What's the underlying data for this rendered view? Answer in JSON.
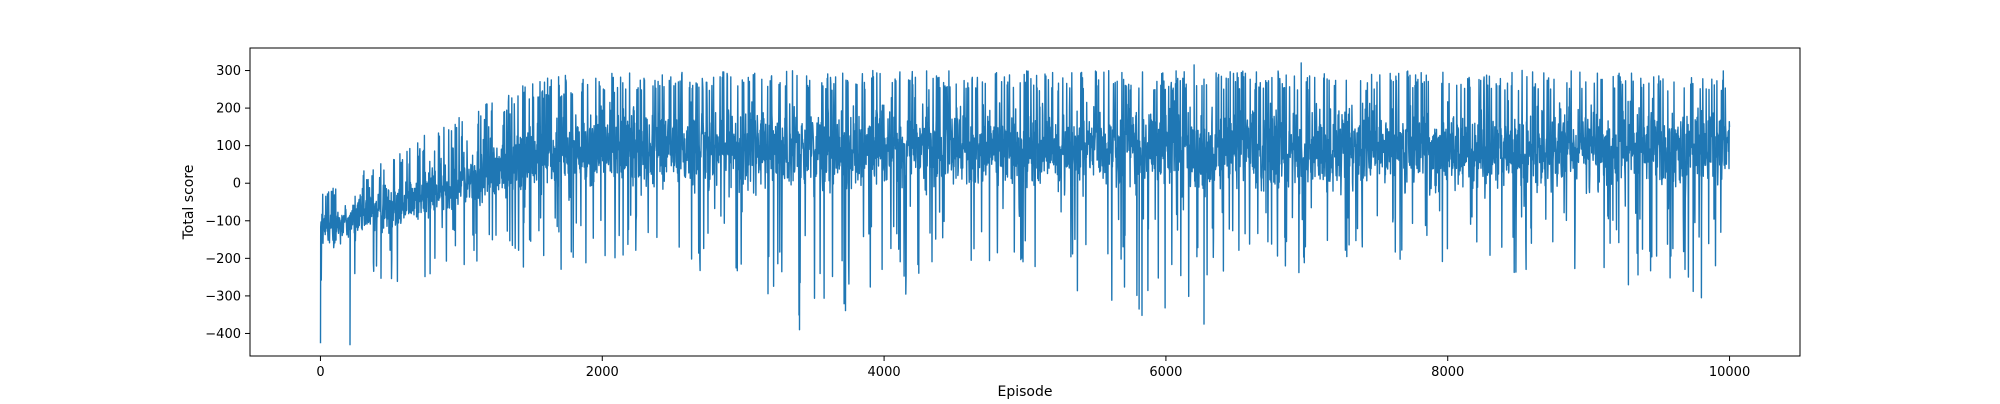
{
  "chart_data": {
    "type": "line",
    "title": "",
    "xlabel": "Episode",
    "ylabel": "Total score",
    "xlim": [
      -500,
      10500
    ],
    "ylim": [
      -460,
      360
    ],
    "xticks": [
      0,
      2000,
      4000,
      6000,
      8000,
      10000
    ],
    "xtick_labels": [
      "0",
      "2000",
      "4000",
      "6000",
      "8000",
      "10000"
    ],
    "yticks": [
      -400,
      -300,
      -200,
      -100,
      0,
      100,
      200,
      300
    ],
    "ytick_labels": [
      "−400",
      "−300",
      "−200",
      "−100",
      "0",
      "100",
      "200",
      "300"
    ],
    "grid": false,
    "legend": "none",
    "line_color": "#1f77b4",
    "envelope_per_500_episodes": {
      "x": [
        0,
        500,
        1000,
        1500,
        2000,
        2500,
        3000,
        3500,
        4000,
        4500,
        5000,
        5500,
        6000,
        6500,
        7000,
        7500,
        8000,
        8500,
        9000,
        9500,
        10000
      ],
      "upper": [
        -30,
        80,
        180,
        280,
        295,
        295,
        300,
        300,
        300,
        300,
        300,
        300,
        300,
        300,
        300,
        300,
        300,
        300,
        300,
        300,
        300
      ],
      "lower": [
        -430,
        -270,
        -260,
        -240,
        -220,
        -220,
        -260,
        -390,
        -300,
        -300,
        -220,
        -330,
        -370,
        -250,
        -260,
        -250,
        -260,
        -250,
        -250,
        -300,
        -310
      ],
      "typical_high": [
        -50,
        30,
        100,
        220,
        240,
        240,
        245,
        245,
        245,
        245,
        245,
        245,
        245,
        245,
        245,
        245,
        245,
        245,
        245,
        245,
        245
      ],
      "typical_low": [
        -200,
        -150,
        -100,
        -80,
        -60,
        -60,
        -60,
        -60,
        -60,
        -60,
        -60,
        -60,
        -60,
        -60,
        -60,
        -60,
        -60,
        -60,
        -60,
        -60,
        -60
      ]
    },
    "notable_points": [
      {
        "x": 210,
        "y": -430
      },
      {
        "x": 3400,
        "y": -390
      },
      {
        "x": 6270,
        "y": -375
      },
      {
        "x": 5810,
        "y": -335
      },
      {
        "x": 9800,
        "y": -305
      },
      {
        "x": 6960,
        "y": 320
      },
      {
        "x": 6200,
        "y": 315
      }
    ]
  }
}
